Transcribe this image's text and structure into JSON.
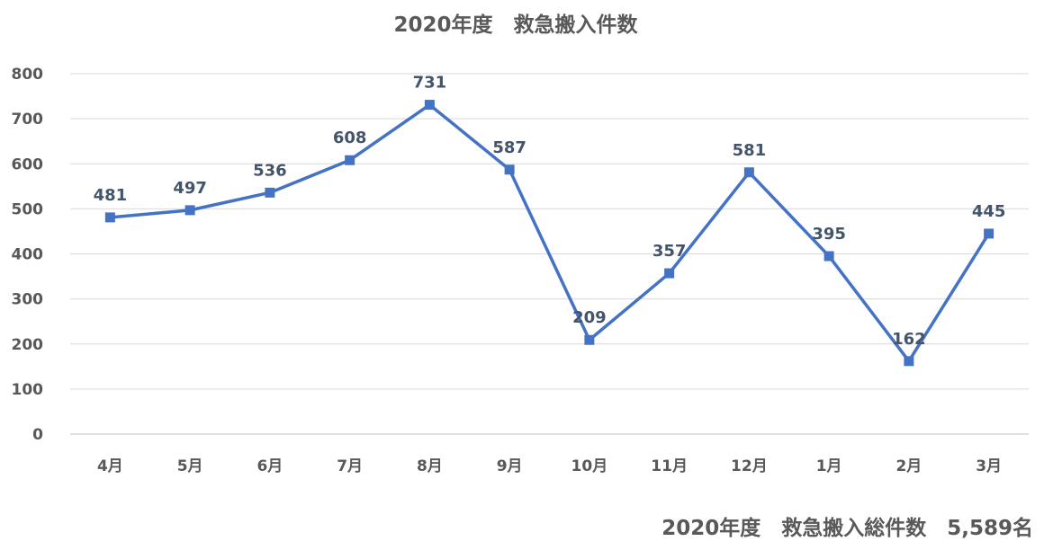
{
  "chart_data": {
    "type": "line",
    "title": "2020年度　救急搬入件数",
    "categories": [
      "4月",
      "5月",
      "6月",
      "7月",
      "8月",
      "9月",
      "10月",
      "11月",
      "12月",
      "1月",
      "2月",
      "3月"
    ],
    "series": [
      {
        "values": [
          481,
          497,
          536,
          608,
          731,
          587,
          209,
          357,
          581,
          395,
          162,
          445
        ],
        "color": "#4472c4",
        "marker": "square"
      }
    ],
    "ylim": [
      0,
      800
    ],
    "yticks": [
      "0",
      "100",
      "200",
      "300",
      "400",
      "500",
      "600",
      "700",
      "800"
    ],
    "grid": true,
    "legend": "none",
    "data_labels": true
  },
  "footer": {
    "total_text": "2020年度　救急搬入総件数　5,589名"
  }
}
